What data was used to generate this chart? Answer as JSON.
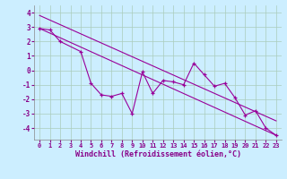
{
  "x": [
    0,
    1,
    2,
    4,
    5,
    6,
    7,
    8,
    9,
    10,
    11,
    12,
    13,
    14,
    15,
    16,
    17,
    18,
    19,
    20,
    21,
    22,
    23
  ],
  "y_data": [
    2.9,
    2.8,
    2.0,
    1.3,
    -0.9,
    -1.7,
    -1.8,
    -1.6,
    -3.0,
    -0.1,
    -1.6,
    -0.7,
    -0.8,
    -1.0,
    0.5,
    -0.3,
    -1.1,
    -0.9,
    -1.9,
    -3.1,
    -2.8,
    -4.0,
    -4.5
  ],
  "upper_line_x": [
    0,
    23
  ],
  "upper_line_y": [
    3.8,
    -3.5
  ],
  "lower_line_x": [
    0,
    23
  ],
  "lower_line_y": [
    2.9,
    -4.5
  ],
  "color": "#990099",
  "bg_color": "#cceeff",
  "grid_color": "#aaccbb",
  "xlabel": "Windchill (Refroidissement éolien,°C)",
  "ylim": [
    -4.8,
    4.5
  ],
  "xlim": [
    -0.5,
    23.5
  ],
  "yticks": [
    -4,
    -3,
    -2,
    -1,
    0,
    1,
    2,
    3,
    4
  ],
  "xticks": [
    0,
    1,
    2,
    3,
    4,
    5,
    6,
    7,
    8,
    9,
    10,
    11,
    12,
    13,
    14,
    15,
    16,
    17,
    18,
    19,
    20,
    21,
    22,
    23
  ]
}
